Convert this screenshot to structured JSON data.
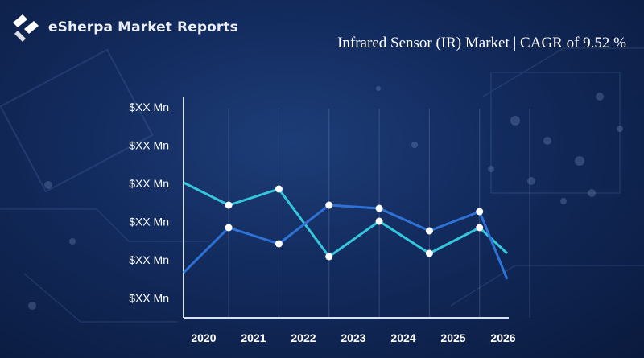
{
  "brand": {
    "name": "eSherpa Market Reports",
    "logo_icon": "esherpa-logo-icon"
  },
  "colors": {
    "series_light": "#35c6dc",
    "series_dark": "#2f72d6",
    "axis": "#d9e2f2",
    "text": "#ffffff",
    "marker": "#ffffff"
  },
  "chart_data": {
    "type": "line",
    "title": "Infrared Sensor (IR) Market | CAGR of 9.52 %",
    "xlabel": "",
    "ylabel": "",
    "y_tick_labels": [
      "$XX Mn",
      "$XX Mn",
      "$XX Mn",
      "$XX Mn",
      "$XX Mn",
      "$XX Mn"
    ],
    "categories": [
      "2020",
      "2021",
      "2022",
      "2023",
      "2024",
      "2025",
      "2026"
    ],
    "x": [
      2019.55,
      2020.45,
      2021.45,
      2022.45,
      2023.45,
      2024.45,
      2025.45,
      2026.0
    ],
    "ylim": [
      0,
      6
    ],
    "grid": "vertical",
    "legend": "none",
    "series": [
      {
        "values": [
          3.7,
          3.0,
          3.5,
          1.4,
          2.5,
          1.5,
          2.3,
          1.5
        ]
      },
      {
        "values": [
          0.9,
          2.3,
          1.8,
          3.0,
          2.9,
          2.2,
          2.8,
          0.7
        ]
      }
    ]
  }
}
